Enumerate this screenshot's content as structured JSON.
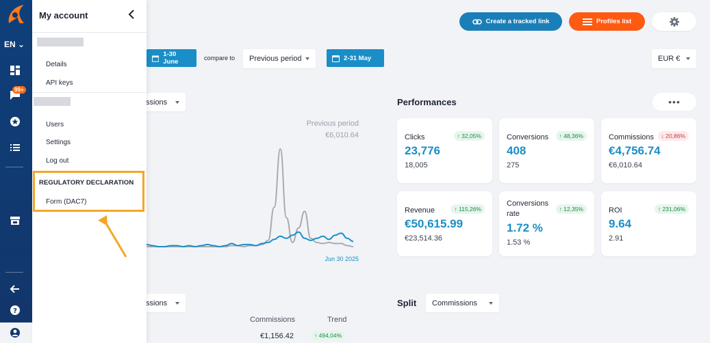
{
  "rail": {
    "lang": "EN",
    "badge": "99+",
    "icons": [
      "dashboard-icon",
      "chat-icon",
      "star-icon",
      "list-icon",
      "store-icon",
      "arrow-left-icon",
      "help-icon",
      "user-icon"
    ],
    "accent": "#12366b"
  },
  "panel": {
    "title": "My account",
    "items_a": [
      "Details",
      "API keys"
    ],
    "items_b": [
      "Users",
      "Settings",
      "Log out"
    ],
    "section": "REGULATORY DECLARATION",
    "section_item": "Form (DAC7)",
    "highlight_color": "#f5a623"
  },
  "toolbar": {
    "create_link": "Create a tracked link",
    "profiles": "Profiles list",
    "date_range": "1-30 June",
    "compare_label": "compare to",
    "compare_select": "Previous period",
    "compare_range": "2-31 May",
    "currency": "EUR  €"
  },
  "chart": {
    "selector": "ssions",
    "prev_label": "Previous period",
    "prev_value": "€6,010.64",
    "end_date": "Jun 30 2025"
  },
  "chart_data": {
    "type": "line",
    "title": "",
    "xlabel": "",
    "ylabel": "",
    "series": [
      {
        "values": [
          0.4,
          0.3,
          0.2,
          0.2,
          0.3,
          0.3,
          0.2,
          0.3,
          0.2,
          0.3,
          0.4,
          0.3,
          0.2,
          0.3,
          0.5,
          0.3,
          0.4,
          0.4,
          0.3,
          0.5,
          0.6,
          0.9,
          1.2,
          1.0,
          1.3,
          1.6,
          1.0,
          0.8,
          1.0,
          1.2,
          0.9,
          1.3,
          1.5,
          1.0,
          0.7
        ]
      },
      {
        "values": [
          0.2,
          0.2,
          0.2,
          0.2,
          0.2,
          0.2,
          0.2,
          0.2,
          0.2,
          0.2,
          0.2,
          0.2,
          0.2,
          0.2,
          0.3,
          0.3,
          0.2,
          0.3,
          0.3,
          0.4,
          0.8,
          4.0,
          9.6,
          3.0,
          0.6,
          2.0,
          3.6,
          1.0,
          0.6,
          0.5,
          0.6,
          0.5,
          0.5,
          0.3,
          0.2
        ]
      }
    ]
  },
  "performances": {
    "title": "Performances",
    "more": "•••",
    "cards": [
      {
        "label": "Clicks",
        "value": "23,776",
        "prev": "18,005",
        "badge": "↑ 32,05%",
        "dir": "up"
      },
      {
        "label": "Conversions",
        "value": "408",
        "prev": "275",
        "badge": "↑ 48,36%",
        "dir": "up"
      },
      {
        "label": "Commissions",
        "value": "€4,756.74",
        "prev": "€6,010.64",
        "badge": "↓ 20,86%",
        "dir": "down"
      },
      {
        "label": "Revenue",
        "value": "€50,615.99",
        "prev": "€23,514.36",
        "badge": "↑ 115,26%",
        "dir": "up"
      },
      {
        "label": "Conversions rate",
        "value": "1.72 %",
        "prev": "1.53 %",
        "badge": "↑ 12,35%",
        "dir": "up"
      },
      {
        "label": "ROI",
        "value": "9.64",
        "prev": "2.91",
        "badge": "↑ 231,06%",
        "dir": "up"
      }
    ]
  },
  "bottom": {
    "selector": "ssions",
    "split_title": "Split",
    "split_select": "Commissions",
    "col_commissions": "Commissions",
    "col_trend": "Trend",
    "row_value": "€1,156.42",
    "row_trend": "↑ 494,04%"
  }
}
